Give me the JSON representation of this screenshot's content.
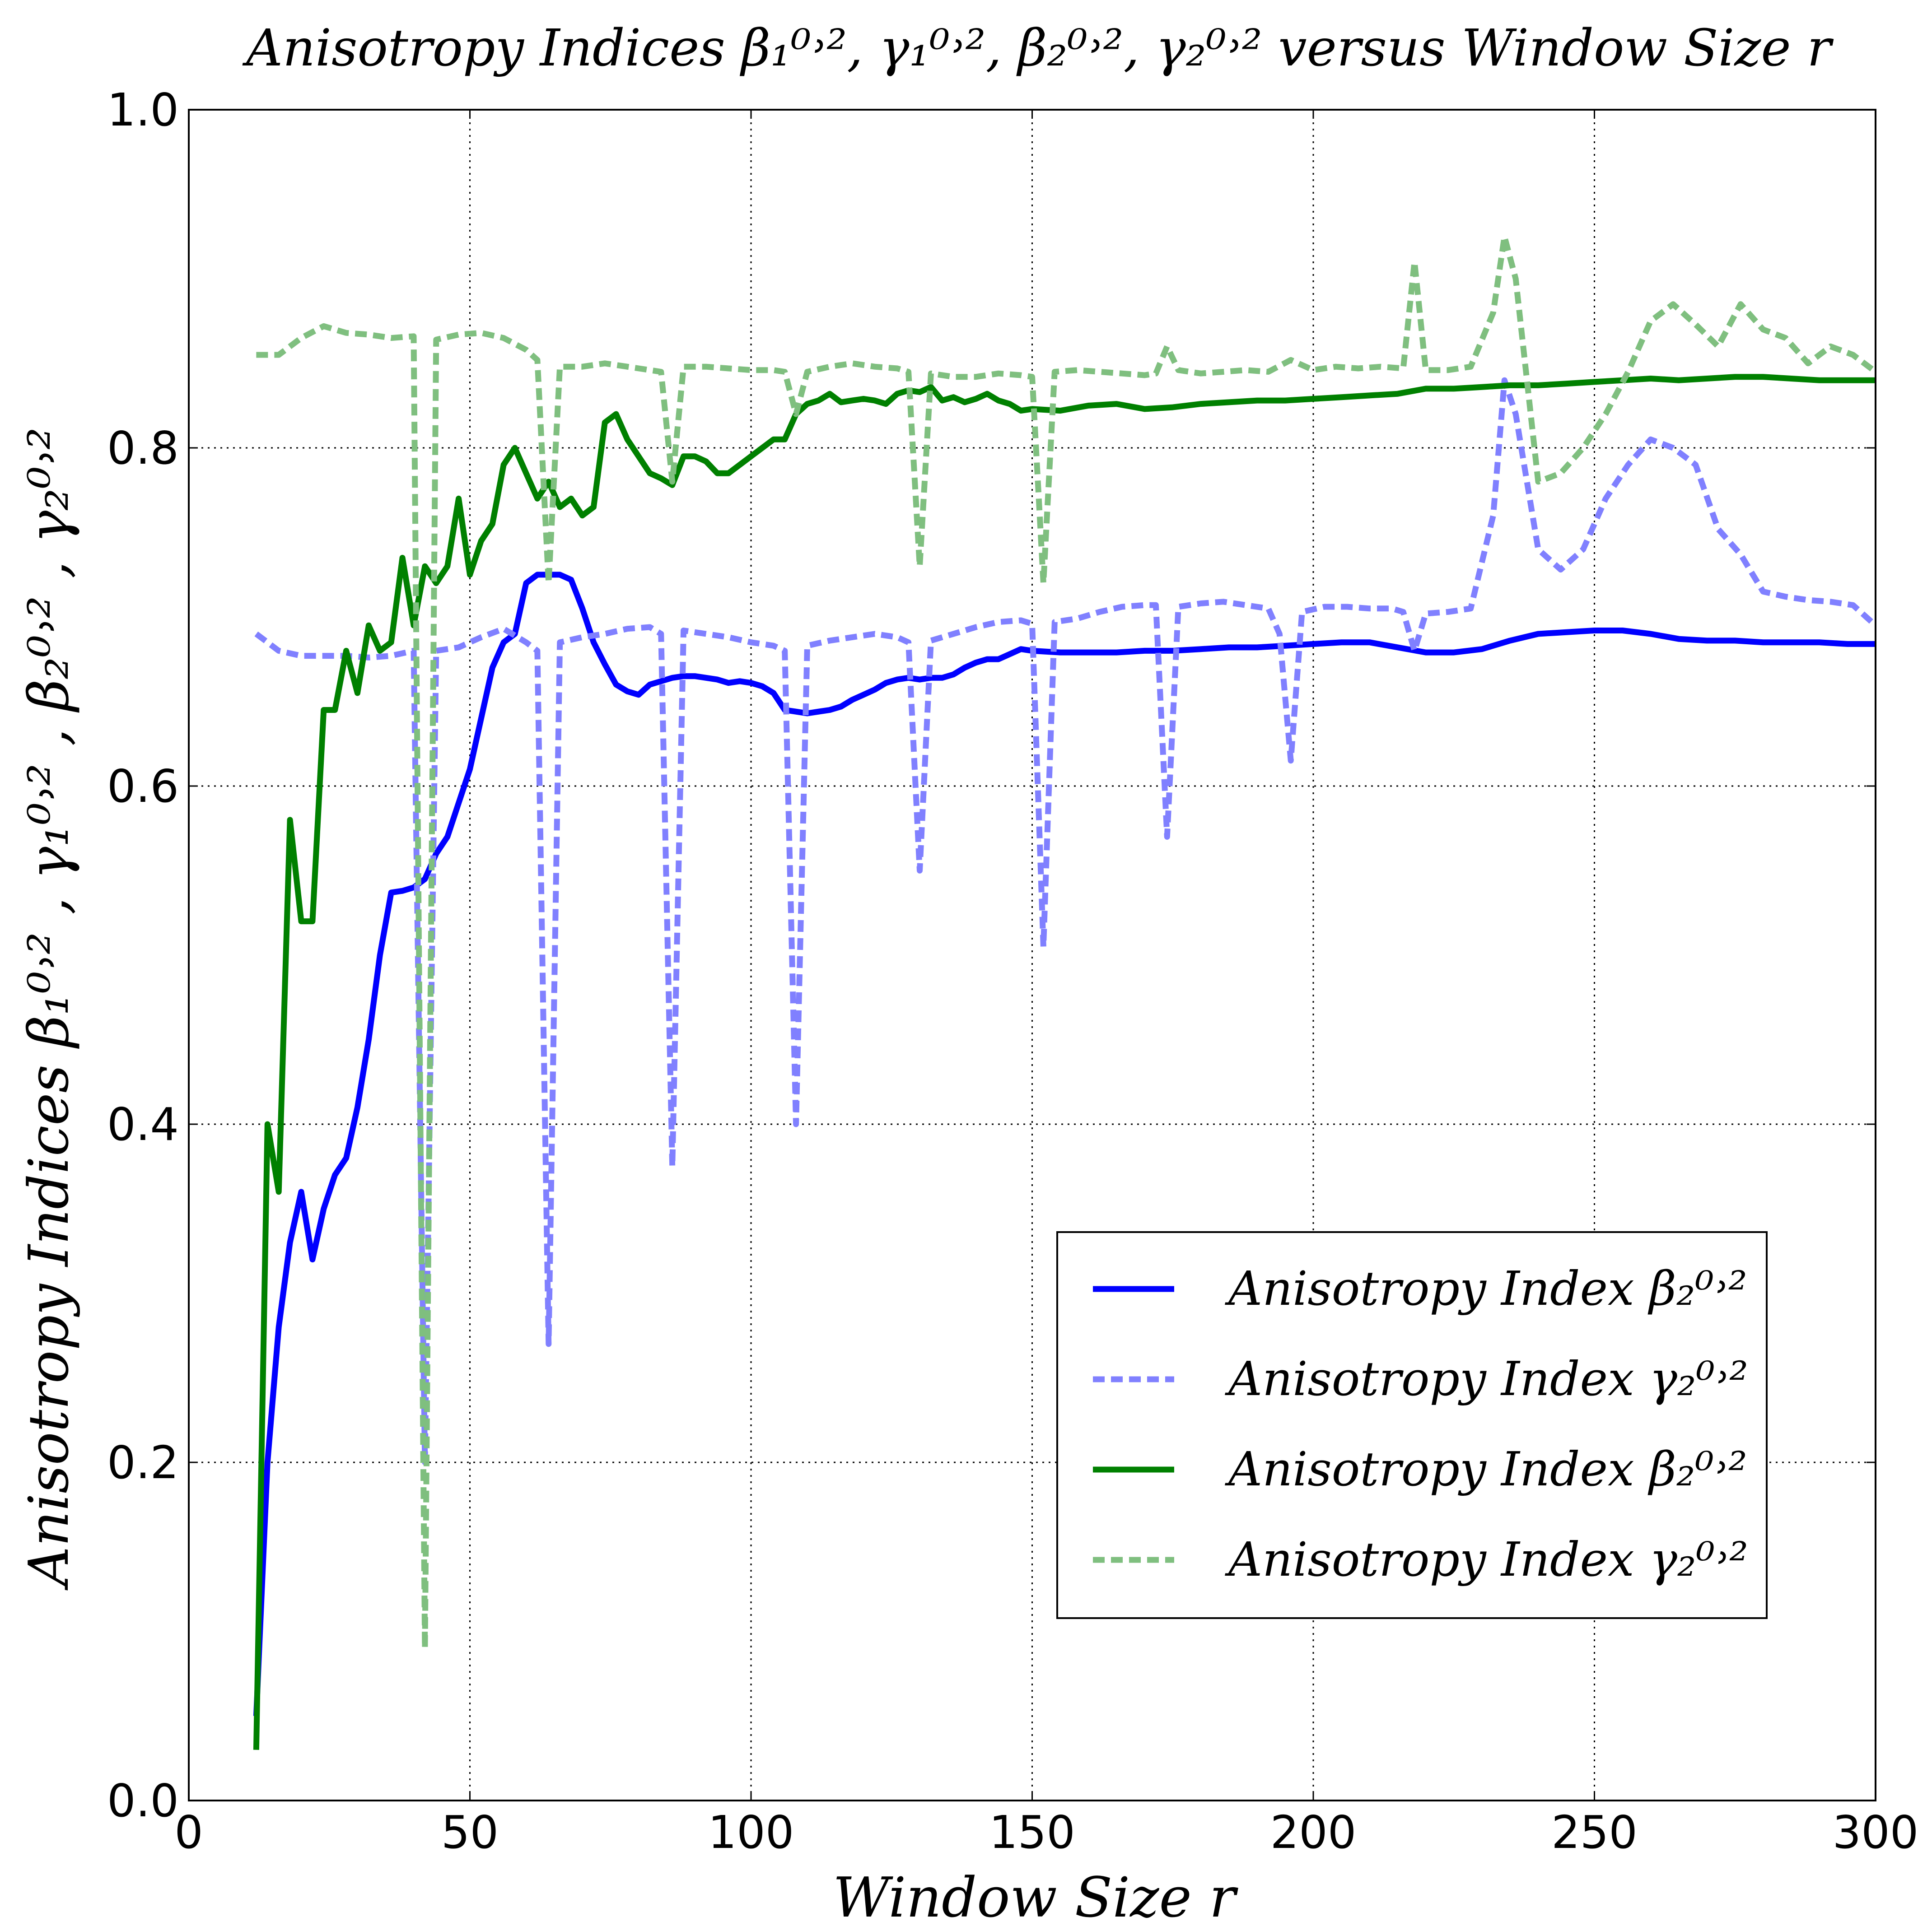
{
  "chart_data": {
    "type": "line",
    "title": "Anisotropy Indices β₁⁰˒², γ₁⁰˒², β₂⁰˒², γ₂⁰˒² versus Window Size r",
    "xlabel": "Window Size r",
    "ylabel": "Anisotropy Indices β₁⁰˒² , γ₁⁰˒² , β₂⁰˒² , γ₂⁰˒²",
    "xlim": [
      0,
      300
    ],
    "ylim": [
      0.0,
      1.0
    ],
    "xticks": [
      0,
      50,
      100,
      150,
      200,
      250,
      300
    ],
    "xtick_labels": [
      "0",
      "50",
      "100",
      "150",
      "200",
      "250",
      "300"
    ],
    "yticks": [
      0.0,
      0.2,
      0.4,
      0.6,
      0.8,
      1.0
    ],
    "ytick_labels": [
      "0.0",
      "0.2",
      "0.4",
      "0.6",
      "0.8",
      "1.0"
    ],
    "grid": true,
    "legend_position": "lower-right",
    "series": [
      {
        "name": "Anisotropy Index β₂⁰˒²",
        "color": "#0000ff",
        "style": "solid",
        "x": [
          12,
          14,
          16,
          18,
          20,
          22,
          24,
          26,
          28,
          30,
          32,
          34,
          36,
          38,
          40,
          42,
          44,
          46,
          48,
          50,
          52,
          54,
          56,
          58,
          60,
          62,
          64,
          66,
          68,
          70,
          72,
          74,
          76,
          78,
          80,
          82,
          84,
          86,
          88,
          90,
          92,
          94,
          96,
          98,
          100,
          102,
          104,
          106,
          108,
          110,
          112,
          114,
          116,
          118,
          120,
          122,
          124,
          126,
          128,
          130,
          132,
          134,
          136,
          138,
          140,
          142,
          144,
          146,
          148,
          150,
          155,
          160,
          165,
          170,
          175,
          180,
          185,
          190,
          195,
          200,
          205,
          210,
          215,
          220,
          225,
          230,
          235,
          240,
          245,
          250,
          255,
          260,
          265,
          270,
          275,
          280,
          285,
          290,
          295,
          300
        ],
        "y": [
          0.05,
          0.2,
          0.28,
          0.33,
          0.36,
          0.32,
          0.35,
          0.37,
          0.38,
          0.41,
          0.45,
          0.5,
          0.537,
          0.538,
          0.54,
          0.545,
          0.56,
          0.57,
          0.59,
          0.61,
          0.64,
          0.67,
          0.685,
          0.69,
          0.72,
          0.725,
          0.725,
          0.725,
          0.722,
          0.705,
          0.685,
          0.672,
          0.66,
          0.656,
          0.654,
          0.66,
          0.662,
          0.664,
          0.665,
          0.665,
          0.664,
          0.663,
          0.661,
          0.662,
          0.661,
          0.659,
          0.655,
          0.645,
          0.644,
          0.643,
          0.644,
          0.645,
          0.647,
          0.651,
          0.654,
          0.657,
          0.661,
          0.663,
          0.664,
          0.663,
          0.664,
          0.664,
          0.666,
          0.67,
          0.673,
          0.675,
          0.675,
          0.678,
          0.681,
          0.68,
          0.679,
          0.679,
          0.679,
          0.68,
          0.68,
          0.681,
          0.682,
          0.682,
          0.683,
          0.684,
          0.685,
          0.685,
          0.682,
          0.679,
          0.679,
          0.681,
          0.686,
          0.69,
          0.691,
          0.692,
          0.692,
          0.69,
          0.687,
          0.686,
          0.686,
          0.685,
          0.685,
          0.685,
          0.684,
          0.684
        ]
      },
      {
        "name": "Anisotropy Index γ₂⁰˒²",
        "color": "#8080ff",
        "style": "dashed",
        "x": [
          12,
          16,
          20,
          24,
          28,
          32,
          36,
          40,
          42,
          44,
          48,
          52,
          56,
          60,
          62,
          64,
          66,
          70,
          74,
          78,
          82,
          84,
          86,
          88,
          92,
          96,
          100,
          104,
          106,
          108,
          110,
          114,
          118,
          122,
          126,
          128,
          130,
          132,
          136,
          140,
          144,
          148,
          150,
          152,
          154,
          158,
          162,
          166,
          170,
          172,
          174,
          176,
          180,
          184,
          188,
          192,
          194,
          196,
          198,
          202,
          206,
          210,
          214,
          216,
          218,
          220,
          224,
          228,
          232,
          234,
          236,
          240,
          244,
          248,
          252,
          256,
          260,
          264,
          268,
          272,
          276,
          280,
          284,
          288,
          292,
          296,
          300
        ],
        "y": [
          0.69,
          0.68,
          0.677,
          0.677,
          0.677,
          0.676,
          0.677,
          0.68,
          0.2,
          0.68,
          0.682,
          0.688,
          0.693,
          0.685,
          0.68,
          0.27,
          0.685,
          0.688,
          0.69,
          0.693,
          0.694,
          0.69,
          0.375,
          0.692,
          0.69,
          0.688,
          0.685,
          0.683,
          0.68,
          0.4,
          0.683,
          0.686,
          0.688,
          0.69,
          0.688,
          0.685,
          0.55,
          0.686,
          0.69,
          0.694,
          0.697,
          0.698,
          0.696,
          0.505,
          0.697,
          0.699,
          0.703,
          0.706,
          0.707,
          0.707,
          0.57,
          0.706,
          0.708,
          0.709,
          0.707,
          0.705,
          0.69,
          0.615,
          0.703,
          0.706,
          0.706,
          0.705,
          0.705,
          0.703,
          0.68,
          0.702,
          0.703,
          0.705,
          0.76,
          0.84,
          0.82,
          0.74,
          0.728,
          0.74,
          0.77,
          0.79,
          0.805,
          0.8,
          0.79,
          0.752,
          0.737,
          0.715,
          0.712,
          0.71,
          0.709,
          0.707,
          0.695
        ]
      },
      {
        "name": "Anisotropy Index β₂⁰˒²",
        "color": "#008000",
        "style": "solid",
        "x": [
          12,
          14,
          16,
          18,
          20,
          22,
          24,
          26,
          28,
          30,
          32,
          34,
          36,
          38,
          40,
          42,
          44,
          46,
          48,
          50,
          52,
          54,
          56,
          58,
          60,
          62,
          64,
          66,
          68,
          70,
          72,
          74,
          76,
          78,
          80,
          82,
          84,
          86,
          88,
          90,
          92,
          94,
          96,
          98,
          100,
          102,
          104,
          106,
          108,
          110,
          112,
          114,
          116,
          118,
          120,
          122,
          124,
          126,
          128,
          130,
          132,
          134,
          136,
          138,
          140,
          142,
          144,
          146,
          148,
          150,
          155,
          160,
          165,
          170,
          175,
          180,
          185,
          190,
          195,
          200,
          205,
          210,
          215,
          220,
          225,
          230,
          235,
          240,
          245,
          250,
          255,
          260,
          265,
          270,
          275,
          280,
          285,
          290,
          295,
          300
        ],
        "y": [
          0.03,
          0.4,
          0.36,
          0.58,
          0.52,
          0.52,
          0.645,
          0.645,
          0.68,
          0.655,
          0.695,
          0.68,
          0.685,
          0.735,
          0.695,
          0.73,
          0.72,
          0.73,
          0.77,
          0.725,
          0.745,
          0.755,
          0.79,
          0.8,
          0.785,
          0.77,
          0.78,
          0.765,
          0.77,
          0.76,
          0.765,
          0.815,
          0.82,
          0.805,
          0.795,
          0.785,
          0.782,
          0.778,
          0.795,
          0.795,
          0.792,
          0.785,
          0.785,
          0.79,
          0.795,
          0.8,
          0.805,
          0.805,
          0.82,
          0.826,
          0.828,
          0.832,
          0.827,
          0.828,
          0.829,
          0.828,
          0.826,
          0.832,
          0.834,
          0.833,
          0.836,
          0.828,
          0.83,
          0.827,
          0.829,
          0.832,
          0.828,
          0.826,
          0.822,
          0.823,
          0.822,
          0.825,
          0.826,
          0.823,
          0.824,
          0.826,
          0.827,
          0.828,
          0.828,
          0.829,
          0.83,
          0.831,
          0.832,
          0.835,
          0.835,
          0.836,
          0.837,
          0.837,
          0.838,
          0.839,
          0.84,
          0.841,
          0.84,
          0.841,
          0.842,
          0.842,
          0.841,
          0.84,
          0.84,
          0.84
        ]
      },
      {
        "name": "Anisotropy Index γ₂⁰˒²",
        "color": "#7fbf7f",
        "style": "dashed",
        "x": [
          12,
          16,
          20,
          24,
          28,
          32,
          36,
          40,
          42,
          44,
          48,
          52,
          56,
          60,
          62,
          64,
          66,
          70,
          74,
          78,
          82,
          84,
          86,
          88,
          92,
          96,
          100,
          104,
          106,
          108,
          110,
          114,
          118,
          122,
          126,
          128,
          130,
          132,
          136,
          140,
          144,
          148,
          150,
          152,
          154,
          158,
          162,
          166,
          170,
          172,
          174,
          176,
          180,
          184,
          188,
          192,
          196,
          200,
          204,
          208,
          212,
          216,
          218,
          220,
          224,
          228,
          232,
          234,
          236,
          240,
          244,
          248,
          252,
          256,
          260,
          264,
          268,
          272,
          276,
          280,
          284,
          288,
          292,
          296,
          300
        ],
        "y": [
          0.855,
          0.855,
          0.865,
          0.872,
          0.868,
          0.867,
          0.865,
          0.866,
          0.09,
          0.864,
          0.867,
          0.868,
          0.865,
          0.858,
          0.852,
          0.72,
          0.848,
          0.848,
          0.85,
          0.848,
          0.846,
          0.845,
          0.78,
          0.848,
          0.848,
          0.847,
          0.846,
          0.846,
          0.845,
          0.82,
          0.845,
          0.848,
          0.85,
          0.848,
          0.847,
          0.845,
          0.73,
          0.844,
          0.842,
          0.842,
          0.844,
          0.843,
          0.842,
          0.72,
          0.845,
          0.846,
          0.845,
          0.844,
          0.843,
          0.844,
          0.86,
          0.846,
          0.844,
          0.845,
          0.846,
          0.845,
          0.852,
          0.846,
          0.848,
          0.847,
          0.848,
          0.847,
          0.91,
          0.846,
          0.846,
          0.848,
          0.88,
          0.925,
          0.9,
          0.78,
          0.785,
          0.8,
          0.82,
          0.845,
          0.875,
          0.885,
          0.873,
          0.86,
          0.885,
          0.87,
          0.865,
          0.85,
          0.86,
          0.855,
          0.845
        ]
      }
    ]
  },
  "legend": {
    "entries": [
      {
        "label": "Anisotropy Index β₂⁰˒²",
        "color": "#0000ff",
        "style": "solid"
      },
      {
        "label": "Anisotropy Index γ₂⁰˒²",
        "color": "#8080ff",
        "style": "dashed"
      },
      {
        "label": "Anisotropy Index β₂⁰˒²",
        "color": "#008000",
        "style": "solid"
      },
      {
        "label": "Anisotropy Index γ₂⁰˒²",
        "color": "#7fbf7f",
        "style": "dashed"
      }
    ]
  }
}
